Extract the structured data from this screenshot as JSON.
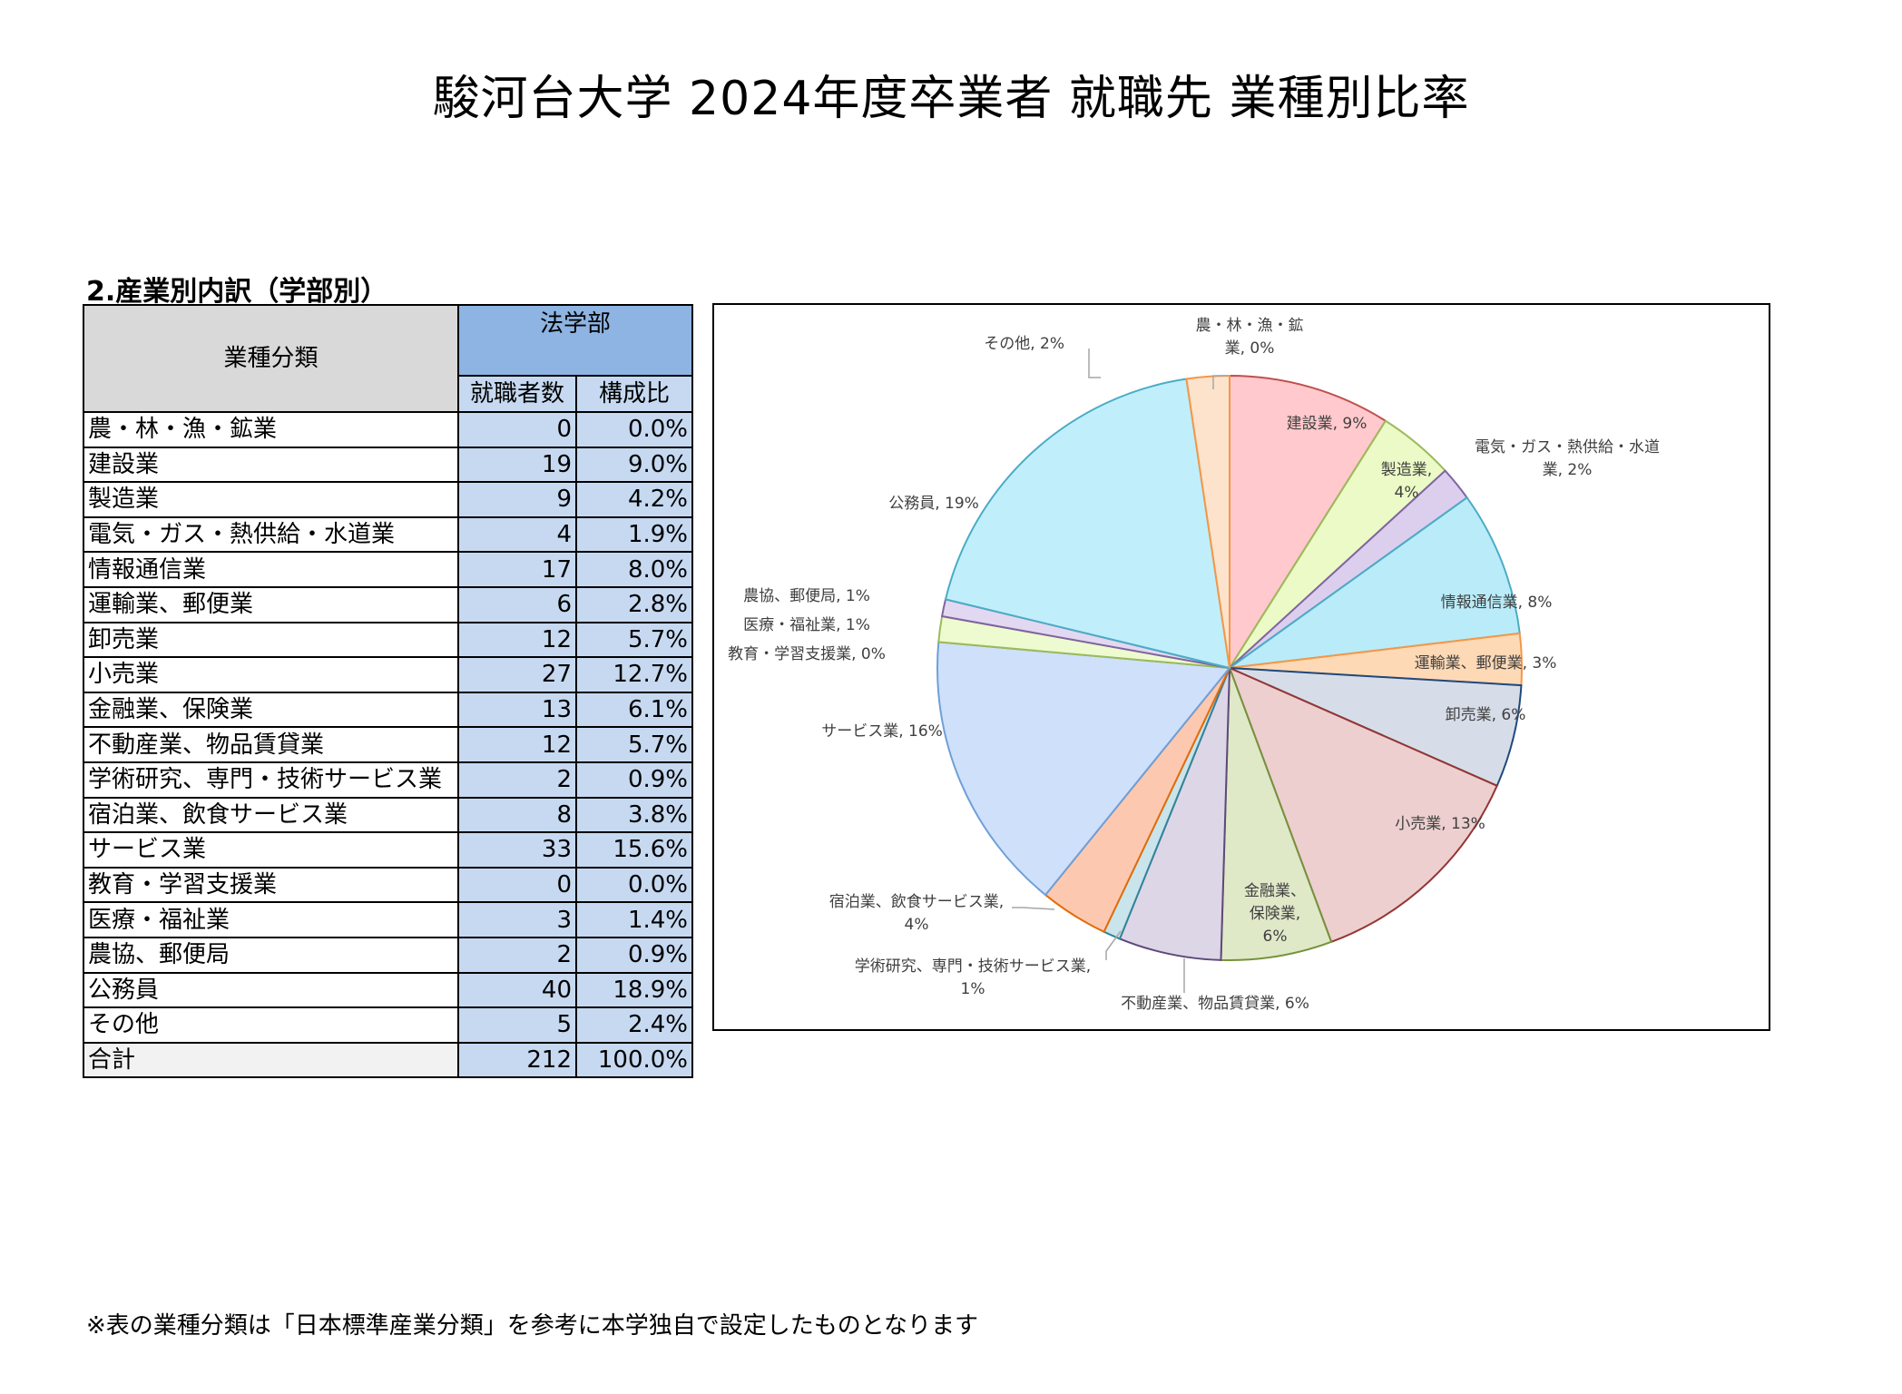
{
  "title": "駿河台大学 2024年度卒業者 就職先 業種別比率",
  "section_title": "2.産業別内訳（学部別）",
  "table": {
    "header_category": "業種分類",
    "header_faculty": "法学部",
    "header_count": "就職者数",
    "header_ratio": "構成比",
    "rows": [
      {
        "category": "農・林・漁・鉱業",
        "count": "0",
        "ratio": "0.0%"
      },
      {
        "category": "建設業",
        "count": "19",
        "ratio": "9.0%"
      },
      {
        "category": "製造業",
        "count": "9",
        "ratio": "4.2%"
      },
      {
        "category": "電気・ガス・熱供給・水道業",
        "count": "4",
        "ratio": "1.9%"
      },
      {
        "category": "情報通信業",
        "count": "17",
        "ratio": "8.0%"
      },
      {
        "category": "運輸業、郵便業",
        "count": "6",
        "ratio": "2.8%"
      },
      {
        "category": "卸売業",
        "count": "12",
        "ratio": "5.7%"
      },
      {
        "category": "小売業",
        "count": "27",
        "ratio": "12.7%"
      },
      {
        "category": "金融業、保険業",
        "count": "13",
        "ratio": "6.1%"
      },
      {
        "category": "不動産業、物品賃貸業",
        "count": "12",
        "ratio": "5.7%"
      },
      {
        "category": "学術研究、専門・技術サービス業",
        "count": "2",
        "ratio": "0.9%"
      },
      {
        "category": "宿泊業、飲食サービス業",
        "count": "8",
        "ratio": "3.8%"
      },
      {
        "category": "サービス業",
        "count": "33",
        "ratio": "15.6%"
      },
      {
        "category": "教育・学習支援業",
        "count": "0",
        "ratio": "0.0%"
      },
      {
        "category": "医療・福祉業",
        "count": "3",
        "ratio": "1.4%"
      },
      {
        "category": "農協、郵便局",
        "count": "2",
        "ratio": "0.9%"
      },
      {
        "category": "公務員",
        "count": "40",
        "ratio": "18.9%"
      },
      {
        "category": "その他",
        "count": "5",
        "ratio": "2.4%"
      }
    ],
    "total": {
      "category": "合計",
      "count": "212",
      "ratio": "100.0%"
    }
  },
  "chart_data": {
    "type": "pie",
    "start_angle_deg": 0,
    "direction": "clockwise",
    "slices": [
      {
        "name": "農・林・漁・鉱業",
        "value": 0,
        "label_lines": [
          "農・林・漁・鉱",
          "業, 0%"
        ],
        "fill": "#e0e0e0",
        "stroke": "#9e9e9e"
      },
      {
        "name": "建設業",
        "value": 19,
        "label_lines": [
          "建設業, 9%"
        ],
        "fill": "#ffc9cd",
        "stroke": "#c0504d"
      },
      {
        "name": "製造業",
        "value": 9,
        "label_lines": [
          "製造業,",
          "4%"
        ],
        "fill": "#ebfac6",
        "stroke": "#9bbb59"
      },
      {
        "name": "電気・ガス・熱供給・水道業",
        "value": 4,
        "label_lines": [
          "電気・ガス・熱供給・水道",
          "業, 2%"
        ],
        "fill": "#dccfee",
        "stroke": "#8064a2"
      },
      {
        "name": "情報通信業",
        "value": 17,
        "label_lines": [
          "情報通信業, 8%"
        ],
        "fill": "#b9ecf8",
        "stroke": "#4bacc6"
      },
      {
        "name": "運輸業、郵便業",
        "value": 6,
        "label_lines": [
          "運輸業、郵便業, 3%"
        ],
        "fill": "#fdd9b5",
        "stroke": "#f79646"
      },
      {
        "name": "卸売業",
        "value": 12,
        "label_lines": [
          "卸売業, 6%"
        ],
        "fill": "#d7dde8",
        "stroke": "#1f497d"
      },
      {
        "name": "小売業",
        "value": 27,
        "label_lines": [
          "小売業, 13%"
        ],
        "fill": "#edcfcf",
        "stroke": "#943634"
      },
      {
        "name": "金融業、保険業",
        "value": 13,
        "label_lines": [
          "金融業、",
          "保険業,",
          "6%"
        ],
        "fill": "#dfe9c8",
        "stroke": "#76923c"
      },
      {
        "name": "不動産業、物品賃貸業",
        "value": 12,
        "label_lines": [
          "不動産業、物品賃貸業, 6%"
        ],
        "fill": "#dcd6e6",
        "stroke": "#5f497a"
      },
      {
        "name": "学術研究、専門・技術サービス業",
        "value": 2,
        "label_lines": [
          "学術研究、専門・技術サービス業,",
          "1%"
        ],
        "fill": "#c9e4ea",
        "stroke": "#31849b"
      },
      {
        "name": "宿泊業、飲食サービス業",
        "value": 8,
        "label_lines": [
          "宿泊業、飲食サービス業,",
          "4%"
        ],
        "fill": "#fcc9b0",
        "stroke": "#e36c09"
      },
      {
        "name": "サービス業",
        "value": 33,
        "label_lines": [
          "サービス業, 16%"
        ],
        "fill": "#cfe0fb",
        "stroke": "#6f9fd8"
      },
      {
        "name": "教育・学習支援業",
        "value": 0,
        "label_lines": [
          "教育・学習支援業, 0%"
        ],
        "fill": "#ffd0d3",
        "stroke": "#c0504d"
      },
      {
        "name": "医療・福祉業",
        "value": 3,
        "label_lines": [
          "医療・福祉業, 1%"
        ],
        "fill": "#eefbd0",
        "stroke": "#9bbb59"
      },
      {
        "name": "農協、郵便局",
        "value": 2,
        "label_lines": [
          "農協、郵便局, 1%"
        ],
        "fill": "#e3d8f1",
        "stroke": "#8064a2"
      },
      {
        "name": "公務員",
        "value": 40,
        "label_lines": [
          "公務員, 19%"
        ],
        "fill": "#c0effb",
        "stroke": "#4bacc6"
      },
      {
        "name": "その他",
        "value": 5,
        "label_lines": [
          "その他, 2%"
        ],
        "fill": "#fde3cc",
        "stroke": "#f79646"
      }
    ]
  },
  "footnote": "※表の業種分類は「日本標準産業分類」を参考に本学独自で設定したものとなります"
}
